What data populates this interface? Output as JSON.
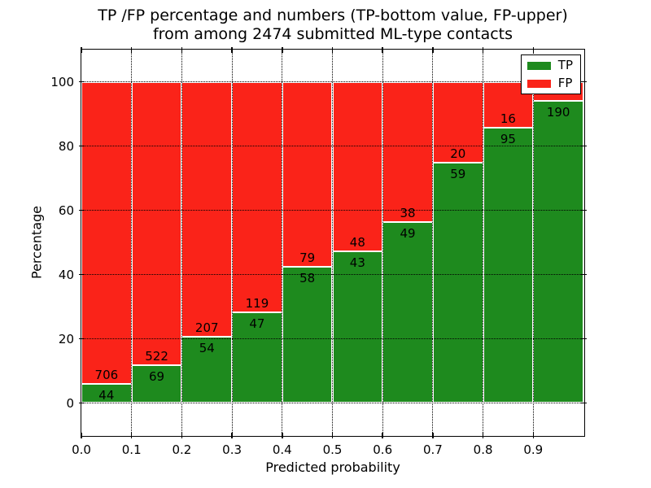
{
  "figure": {
    "title_line1": "TP /FP percentage and numbers (TP-bottom value, FP-upper)",
    "title_line2": "from among 2474 submitted ML-type contacts",
    "xlabel": "Predicted probability",
    "ylabel": "Percentage"
  },
  "legend": {
    "position": "upper-right",
    "items": [
      {
        "label": "TP",
        "color": "#1e8a1e"
      },
      {
        "label": "FP",
        "color": "#fa2319"
      }
    ]
  },
  "chart_data": {
    "type": "bar",
    "stacked": true,
    "normalized_to_percent": true,
    "title": "TP /FP percentage and numbers (TP-bottom value, FP-upper)\nfrom among 2474 submitted ML-type contacts",
    "xlabel": "Predicted probability",
    "ylabel": "Percentage",
    "total_contacts": 2474,
    "x_bin_starts": [
      0.0,
      0.1,
      0.2,
      0.3,
      0.4,
      0.5,
      0.6,
      0.7,
      0.8,
      0.9
    ],
    "x_bin_width": 0.1,
    "series": [
      {
        "name": "TP",
        "color": "#1e8a1e",
        "values": [
          44,
          69,
          54,
          47,
          58,
          43,
          49,
          59,
          95,
          190
        ]
      },
      {
        "name": "FP",
        "color": "#fa2319",
        "values": [
          706,
          522,
          207,
          119,
          79,
          48,
          38,
          20,
          16,
          null
        ]
      }
    ],
    "tp_pct": [
      5.9,
      11.7,
      20.7,
      28.3,
      42.3,
      47.3,
      56.3,
      74.7,
      85.6,
      94.0
    ],
    "note": "FP count label of the 0.9-1.0 bin is hidden behind the legend in the original image",
    "x_tick_values": [
      0.0,
      0.1,
      0.2,
      0.3,
      0.4,
      0.5,
      0.6,
      0.7,
      0.8,
      0.9
    ],
    "x_tick_labels": [
      "0.0",
      "0.1",
      "0.2",
      "0.3",
      "0.4",
      "0.5",
      "0.6",
      "0.7",
      "0.8",
      "0.9"
    ],
    "y_tick_values": [
      0,
      20,
      40,
      60,
      80,
      100
    ],
    "y_tick_labels": [
      "0",
      "20",
      "40",
      "60",
      "80",
      "100"
    ],
    "xlim": [
      0,
      1.0
    ],
    "ylim": [
      -10,
      110
    ],
    "grid": "dotted",
    "legend_position": "upper right"
  }
}
